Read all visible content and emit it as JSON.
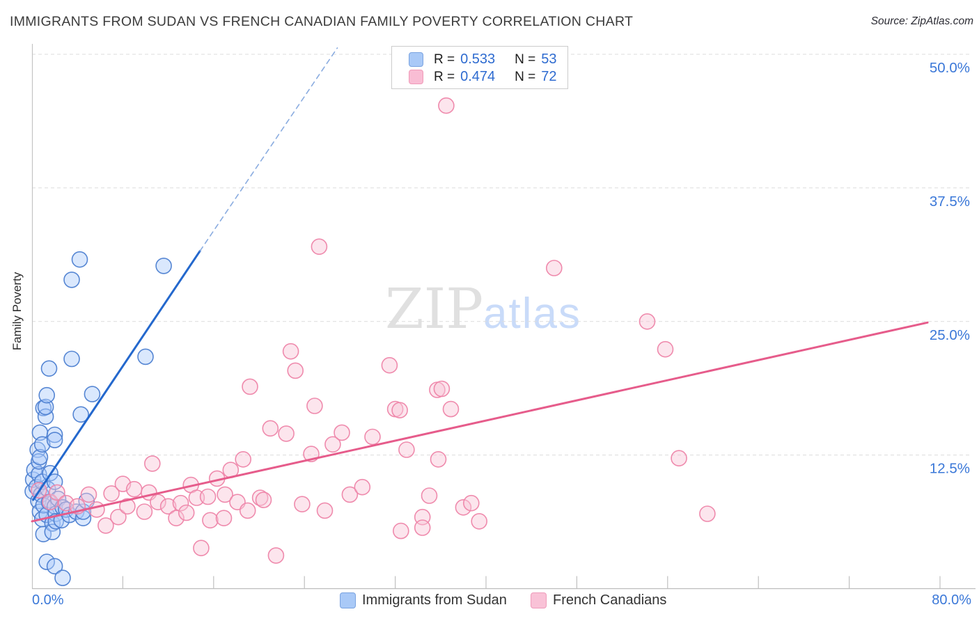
{
  "header": {
    "title": "IMMIGRANTS FROM SUDAN VS FRENCH CANADIAN FAMILY POVERTY CORRELATION CHART",
    "source": "Source: ZipAtlas.com"
  },
  "watermark": {
    "zip": "ZIP",
    "atlas": "atlas"
  },
  "stats_box": {
    "rows": [
      {
        "series": "Immigrants from Sudan",
        "r_label": "R =",
        "r_value": "0.533",
        "n_label": "N =",
        "n_value": "53"
      },
      {
        "series": "French Canadians",
        "r_label": "R =",
        "r_value": "0.474",
        "n_label": "N =",
        "n_value": "72"
      }
    ]
  },
  "bottom_legend": [
    {
      "label": "Immigrants from Sudan",
      "swatch_fill": "#a9c9f7",
      "swatch_border": "#7aa3e0"
    },
    {
      "label": "French Canadians",
      "swatch_fill": "#f9c2d7",
      "swatch_border": "#ef9cbb"
    }
  ],
  "axes": {
    "y_label": "Family Poverty",
    "x_min_label": "0.0%",
    "x_max_label": "80.0%"
  },
  "chart_data": {
    "type": "scatter",
    "title": "IMMIGRANTS FROM SUDAN VS FRENCH CANADIAN FAMILY POVERTY CORRELATION CHART",
    "xlabel": "Immigrants from Sudan (%)",
    "ylabel": "Family Poverty",
    "xlim": [
      0,
      80
    ],
    "ylim": [
      0,
      50
    ],
    "grid": "dashed-horizontal",
    "legend_position": "bottom-center",
    "y_gridlines": [
      {
        "value": 50,
        "label": "50.0%"
      },
      {
        "value": 37.5,
        "label": "37.5%"
      },
      {
        "value": 25,
        "label": "25.0%"
      },
      {
        "value": 12.5,
        "label": "12.5%"
      }
    ],
    "x_tick_count": 10,
    "grid_color": "#dcdcdc",
    "axis_color": "#bdbdbd",
    "tick_label_color": "#3b78d8",
    "series": [
      {
        "name": "Immigrants from Sudan",
        "R": 0.533,
        "N": 53,
        "point_fill": "#aecbfa",
        "point_stroke": "#4d7fd1",
        "points": [
          [
            0.06,
            9.1
          ],
          [
            0.1,
            10.2
          ],
          [
            0.2,
            11.1
          ],
          [
            0.4,
            9.5
          ],
          [
            0.5,
            13.0
          ],
          [
            0.55,
            8.2
          ],
          [
            0.6,
            10.7
          ],
          [
            0.6,
            11.9
          ],
          [
            0.7,
            12.3
          ],
          [
            0.7,
            14.6
          ],
          [
            0.7,
            7.2
          ],
          [
            0.8,
            8.8
          ],
          [
            0.9,
            13.5
          ],
          [
            0.9,
            10.0
          ],
          [
            0.9,
            6.5
          ],
          [
            1.0,
            16.9
          ],
          [
            1.0,
            7.8
          ],
          [
            1.0,
            5.1
          ],
          [
            1.2,
            16.1
          ],
          [
            1.2,
            17.0
          ],
          [
            1.3,
            2.5
          ],
          [
            1.3,
            18.1
          ],
          [
            1.3,
            6.9
          ],
          [
            1.4,
            9.3
          ],
          [
            1.5,
            20.6
          ],
          [
            1.5,
            8.1
          ],
          [
            1.6,
            10.8
          ],
          [
            1.8,
            6.1
          ],
          [
            1.8,
            5.3
          ],
          [
            2.0,
            14.4
          ],
          [
            2.0,
            13.9
          ],
          [
            2.0,
            10.0
          ],
          [
            2.0,
            7.7
          ],
          [
            2.0,
            2.1
          ],
          [
            2.1,
            7.0
          ],
          [
            2.1,
            6.3
          ],
          [
            2.3,
            8.4
          ],
          [
            2.6,
            6.4
          ],
          [
            2.7,
            1.0
          ],
          [
            2.7,
            7.6
          ],
          [
            3.0,
            7.4
          ],
          [
            3.3,
            6.9
          ],
          [
            3.5,
            28.9
          ],
          [
            3.5,
            21.5
          ],
          [
            3.9,
            7.2
          ],
          [
            4.2,
            30.8
          ],
          [
            4.3,
            16.3
          ],
          [
            4.5,
            6.6
          ],
          [
            4.5,
            7.2
          ],
          [
            4.8,
            8.2
          ],
          [
            5.3,
            18.2
          ],
          [
            10.0,
            21.7
          ],
          [
            11.6,
            30.2
          ]
        ]
      },
      {
        "name": "French Canadians",
        "R": 0.474,
        "N": 72,
        "point_fill": "#f9c6d8",
        "point_stroke": "#ee85a9",
        "points": [
          [
            0.6,
            9.2
          ],
          [
            1.6,
            8.1
          ],
          [
            2.2,
            9.0
          ],
          [
            3.0,
            8.0
          ],
          [
            4.0,
            7.7
          ],
          [
            5.0,
            8.8
          ],
          [
            5.7,
            7.4
          ],
          [
            6.5,
            5.9
          ],
          [
            7.0,
            8.9
          ],
          [
            7.6,
            6.7
          ],
          [
            8.0,
            9.8
          ],
          [
            8.4,
            7.7
          ],
          [
            9.0,
            9.3
          ],
          [
            9.9,
            7.2
          ],
          [
            10.3,
            9.0
          ],
          [
            10.6,
            11.7
          ],
          [
            11.1,
            8.1
          ],
          [
            12.0,
            7.7
          ],
          [
            12.7,
            6.6
          ],
          [
            13.1,
            8.0
          ],
          [
            13.6,
            7.1
          ],
          [
            14.0,
            9.7
          ],
          [
            14.5,
            8.5
          ],
          [
            14.9,
            3.8
          ],
          [
            15.5,
            8.6
          ],
          [
            15.7,
            6.4
          ],
          [
            16.3,
            10.3
          ],
          [
            16.9,
            6.6
          ],
          [
            17.0,
            8.8
          ],
          [
            17.5,
            11.1
          ],
          [
            18.1,
            8.1
          ],
          [
            18.6,
            12.1
          ],
          [
            19.0,
            7.3
          ],
          [
            19.2,
            18.9
          ],
          [
            20.1,
            8.5
          ],
          [
            20.4,
            8.3
          ],
          [
            21.0,
            15.0
          ],
          [
            21.5,
            3.1
          ],
          [
            22.4,
            14.5
          ],
          [
            22.8,
            22.2
          ],
          [
            23.2,
            20.4
          ],
          [
            23.8,
            7.9
          ],
          [
            24.6,
            12.6
          ],
          [
            24.9,
            17.1
          ],
          [
            25.3,
            32.0
          ],
          [
            25.8,
            7.3
          ],
          [
            26.5,
            13.5
          ],
          [
            27.3,
            14.6
          ],
          [
            28.0,
            8.8
          ],
          [
            29.1,
            9.5
          ],
          [
            30.0,
            14.2
          ],
          [
            31.5,
            20.9
          ],
          [
            32.0,
            16.8
          ],
          [
            32.4,
            16.7
          ],
          [
            32.5,
            5.4
          ],
          [
            33.0,
            13.0
          ],
          [
            34.4,
            6.7
          ],
          [
            34.4,
            5.7
          ],
          [
            35.0,
            8.7
          ],
          [
            35.7,
            18.6
          ],
          [
            35.8,
            12.1
          ],
          [
            36.1,
            18.7
          ],
          [
            36.5,
            45.2
          ],
          [
            36.9,
            16.8
          ],
          [
            38.0,
            7.6
          ],
          [
            38.7,
            8.0
          ],
          [
            39.4,
            6.3
          ],
          [
            46.0,
            30.0
          ],
          [
            54.2,
            25.0
          ],
          [
            55.8,
            22.4
          ],
          [
            57.0,
            12.2
          ],
          [
            59.5,
            7.0
          ]
        ]
      }
    ],
    "trend_lines": [
      {
        "name": "sudan-trend-solid",
        "color": "#2468cd",
        "width": 3,
        "dash": "",
        "from": [
          0.1,
          8.3
        ],
        "to": [
          14.8,
          31.6
        ]
      },
      {
        "name": "sudan-trend-extension",
        "color": "#8aace0",
        "width": 1.6,
        "dash": "7,6",
        "from": [
          14.8,
          31.6
        ],
        "to": [
          26.9,
          50.6
        ]
      },
      {
        "name": "french-trend",
        "color": "#e65c8b",
        "width": 3,
        "dash": "",
        "from": [
          0,
          6.3
        ],
        "to": [
          78.9,
          24.9
        ]
      }
    ]
  }
}
